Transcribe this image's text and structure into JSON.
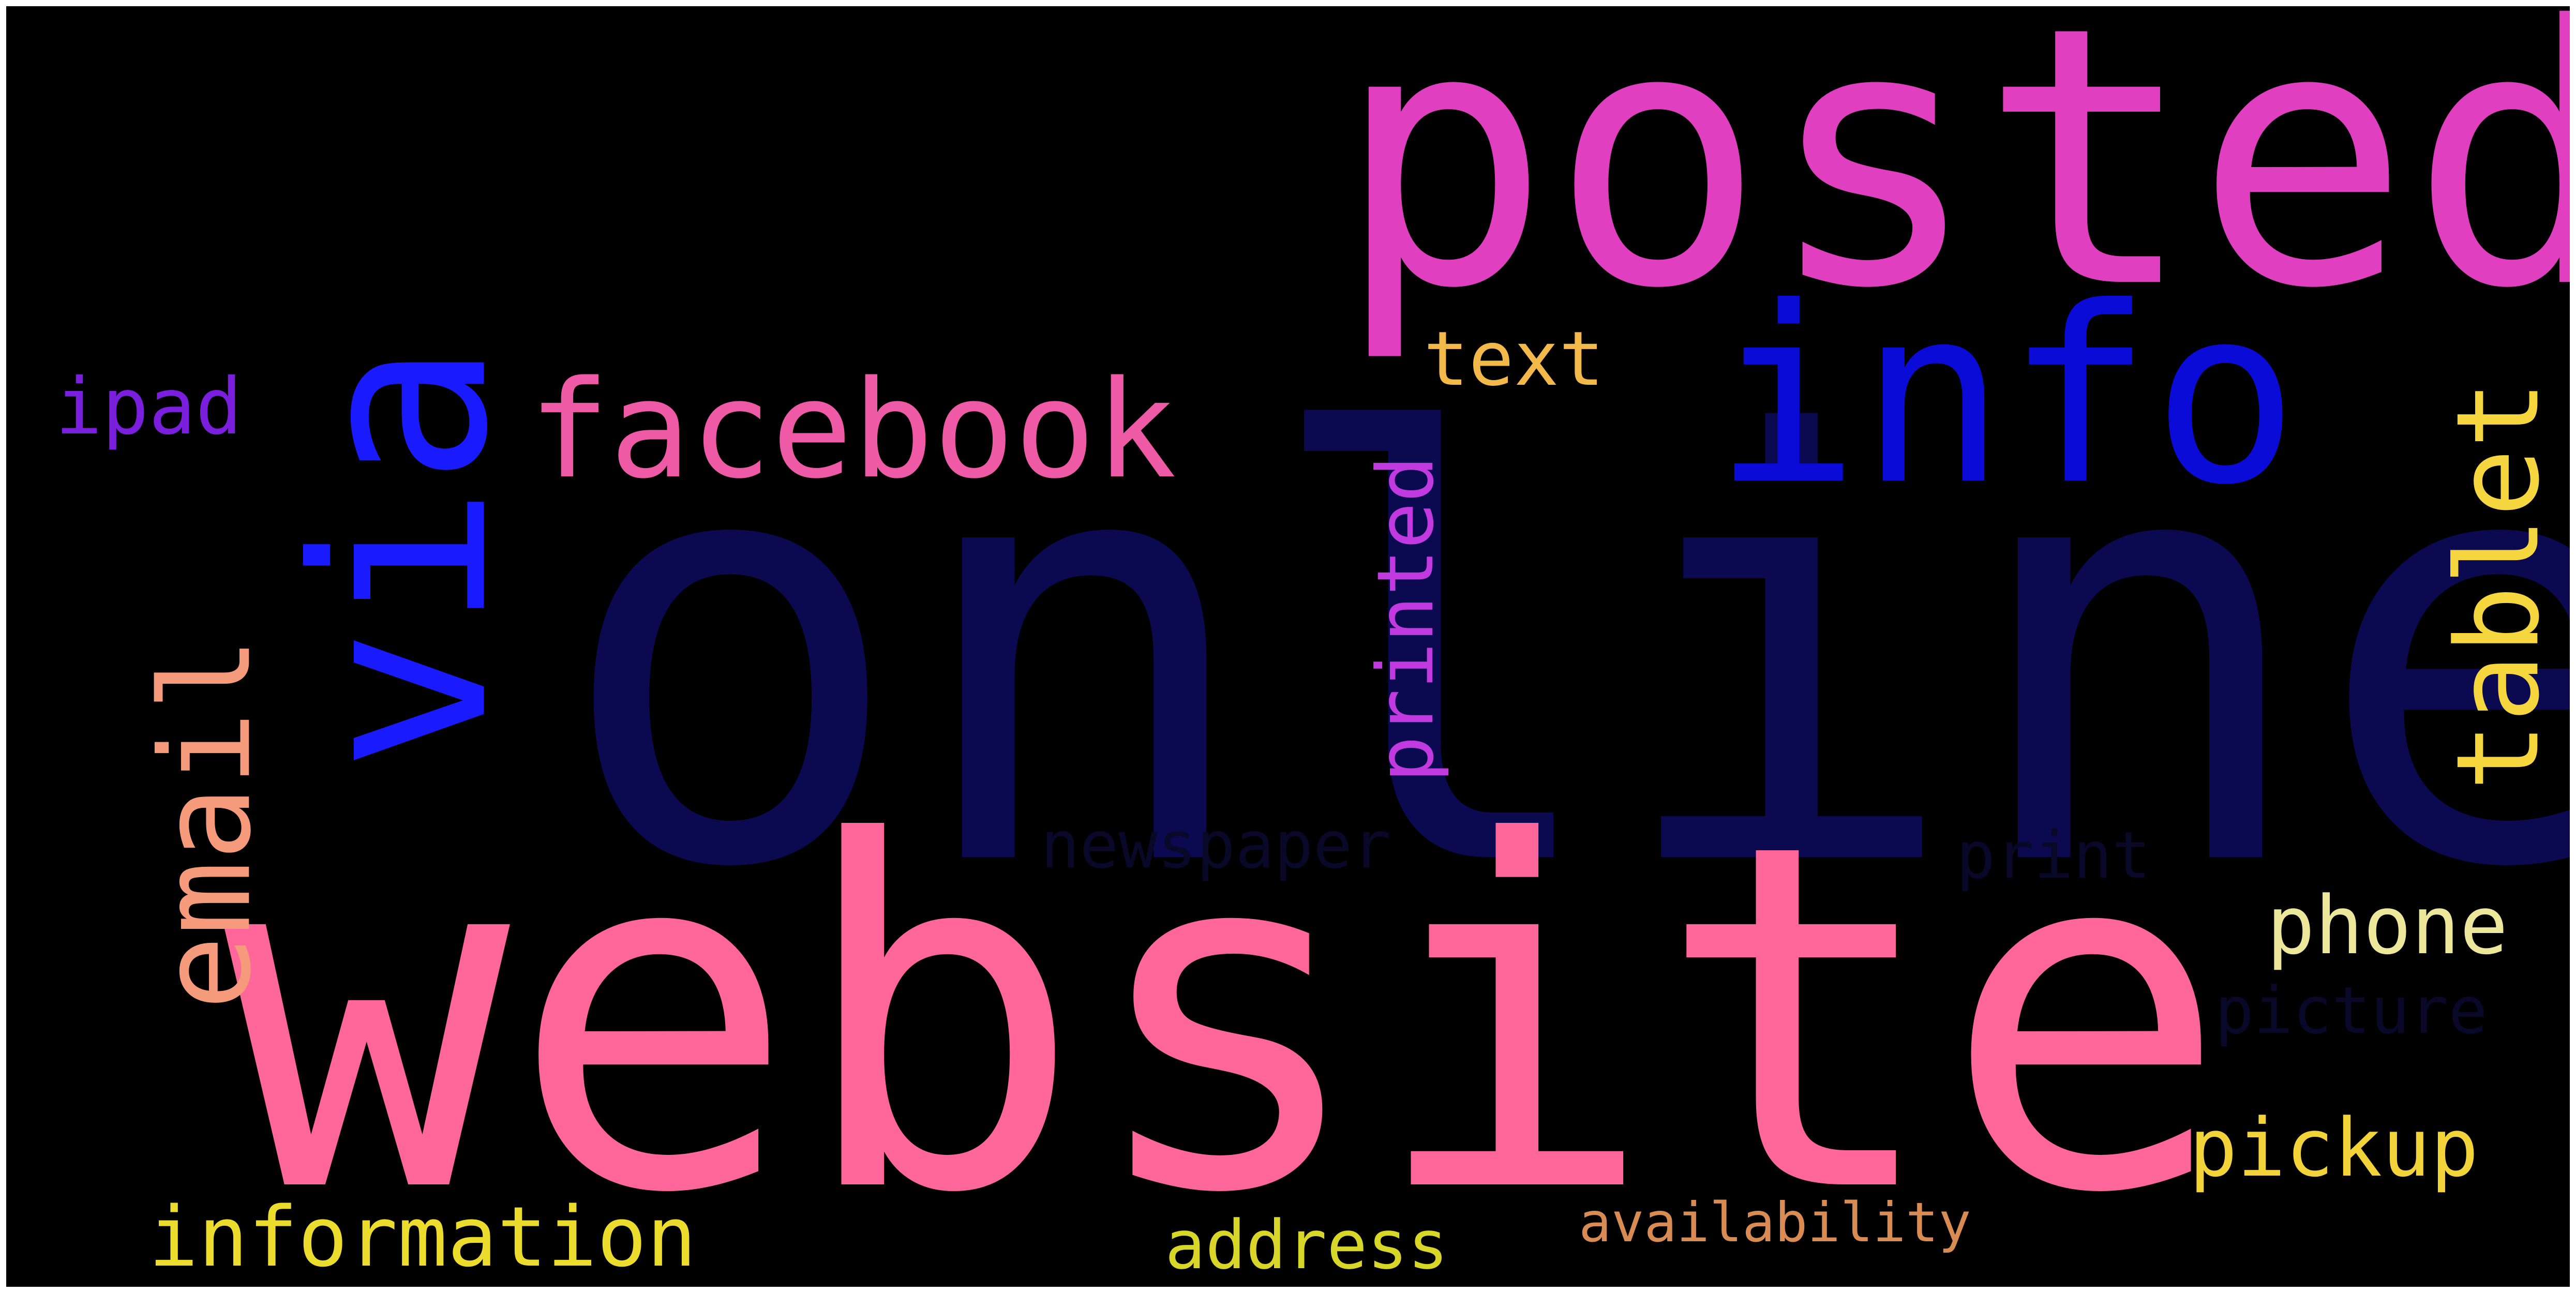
{
  "panel": {
    "background": "#000000"
  },
  "words": [
    {
      "id": "online",
      "text": "online",
      "color": "#0b0a50"
    },
    {
      "id": "website",
      "text": "website",
      "color": "#ff6699"
    },
    {
      "id": "posted",
      "text": "posted",
      "color": "#e040c0"
    },
    {
      "id": "via",
      "text": "via",
      "color": "#1a1aff"
    },
    {
      "id": "info",
      "text": "info",
      "color": "#0b0bd8"
    },
    {
      "id": "facebook",
      "text": "facebook",
      "color": "#ee5aa6"
    },
    {
      "id": "email",
      "text": "email",
      "color": "#f59b7c"
    },
    {
      "id": "tablet",
      "text": "tablet",
      "color": "#f6d63f"
    },
    {
      "id": "ipad",
      "text": "ipad",
      "color": "#7a1fdd"
    },
    {
      "id": "text",
      "text": "text",
      "color": "#f2b84a"
    },
    {
      "id": "printed",
      "text": "printed",
      "color": "#c03ae0"
    },
    {
      "id": "newspaper",
      "text": "newspaper",
      "color": "#090828"
    },
    {
      "id": "print",
      "text": "print",
      "color": "#090828"
    },
    {
      "id": "phone",
      "text": "phone",
      "color": "#ece79a"
    },
    {
      "id": "picture",
      "text": "picture",
      "color": "#090828"
    },
    {
      "id": "pickup",
      "text": "pickup",
      "color": "#f3d33a"
    },
    {
      "id": "information",
      "text": "information",
      "color": "#ecdc2e"
    },
    {
      "id": "address",
      "text": "address",
      "color": "#d8d629"
    },
    {
      "id": "availability",
      "text": "availability",
      "color": "#d88b52"
    }
  ]
}
